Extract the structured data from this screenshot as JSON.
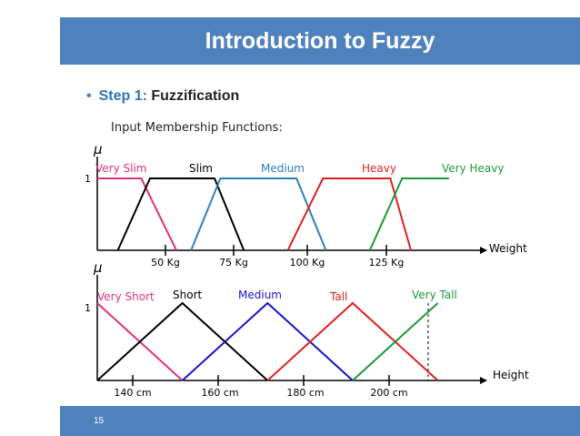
{
  "slide": {
    "title": "Introduction to Fuzzy",
    "bullet_step_label": "Step 1:",
    "bullet_text": "Fuzzification",
    "subtitle": "Input Membership Functions:",
    "page_number": "15"
  },
  "colors": {
    "title_bar": "#4f81bd",
    "pink": "#e0307a",
    "black": "#000000",
    "blue_med": "#2e7fb8",
    "red": "#e02020",
    "green": "#1a9a3a",
    "blue_dark": "#1515c8"
  },
  "chart_data": [
    {
      "type": "line",
      "ylabel": "μ",
      "y_tick": "1",
      "xlabel": "Weight",
      "x_ticks": [
        "50 Kg",
        "75 Kg",
        "100 Kg",
        "125 Kg"
      ],
      "series": [
        {
          "name": "Very Slim",
          "color": "#e0307a",
          "x": [
            30,
            45,
            57
          ],
          "y": [
            1,
            1,
            0
          ]
        },
        {
          "name": "Slim",
          "color": "#000000",
          "x": [
            37,
            48,
            70,
            80
          ],
          "y": [
            0,
            1,
            1,
            0
          ]
        },
        {
          "name": "Medium",
          "color": "#2e7fb8",
          "x": [
            62,
            72,
            98,
            108
          ],
          "y": [
            0,
            1,
            1,
            0
          ]
        },
        {
          "name": "Heavy",
          "color": "#e02020",
          "x": [
            95,
            107,
            130,
            137
          ],
          "y": [
            0,
            1,
            1,
            0
          ]
        },
        {
          "name": "Very Heavy",
          "color": "#1a9a3a",
          "x": [
            123,
            134,
            150
          ],
          "y": [
            0,
            1,
            1
          ]
        }
      ]
    },
    {
      "type": "line",
      "ylabel": "μ",
      "y_tick": "1",
      "xlabel": "Height",
      "x_ticks": [
        "140 cm",
        "160 cm",
        "180 cm",
        "200 cm"
      ],
      "series": [
        {
          "name": "Very Short",
          "color": "#e0307a",
          "x": [
            130,
            150
          ],
          "y": [
            1,
            0
          ]
        },
        {
          "name": "Short",
          "color": "#000000",
          "x": [
            130,
            150,
            170
          ],
          "y": [
            0,
            1,
            0
          ]
        },
        {
          "name": "Medium",
          "color": "#1515c8",
          "x": [
            150,
            170,
            190
          ],
          "y": [
            0,
            1,
            0
          ]
        },
        {
          "name": "Tall",
          "color": "#e02020",
          "x": [
            170,
            190,
            210
          ],
          "y": [
            0,
            1,
            0
          ]
        },
        {
          "name": "Very Tall",
          "color": "#1a9a3a",
          "x": [
            190,
            210
          ],
          "y": [
            0,
            1
          ]
        }
      ]
    }
  ]
}
